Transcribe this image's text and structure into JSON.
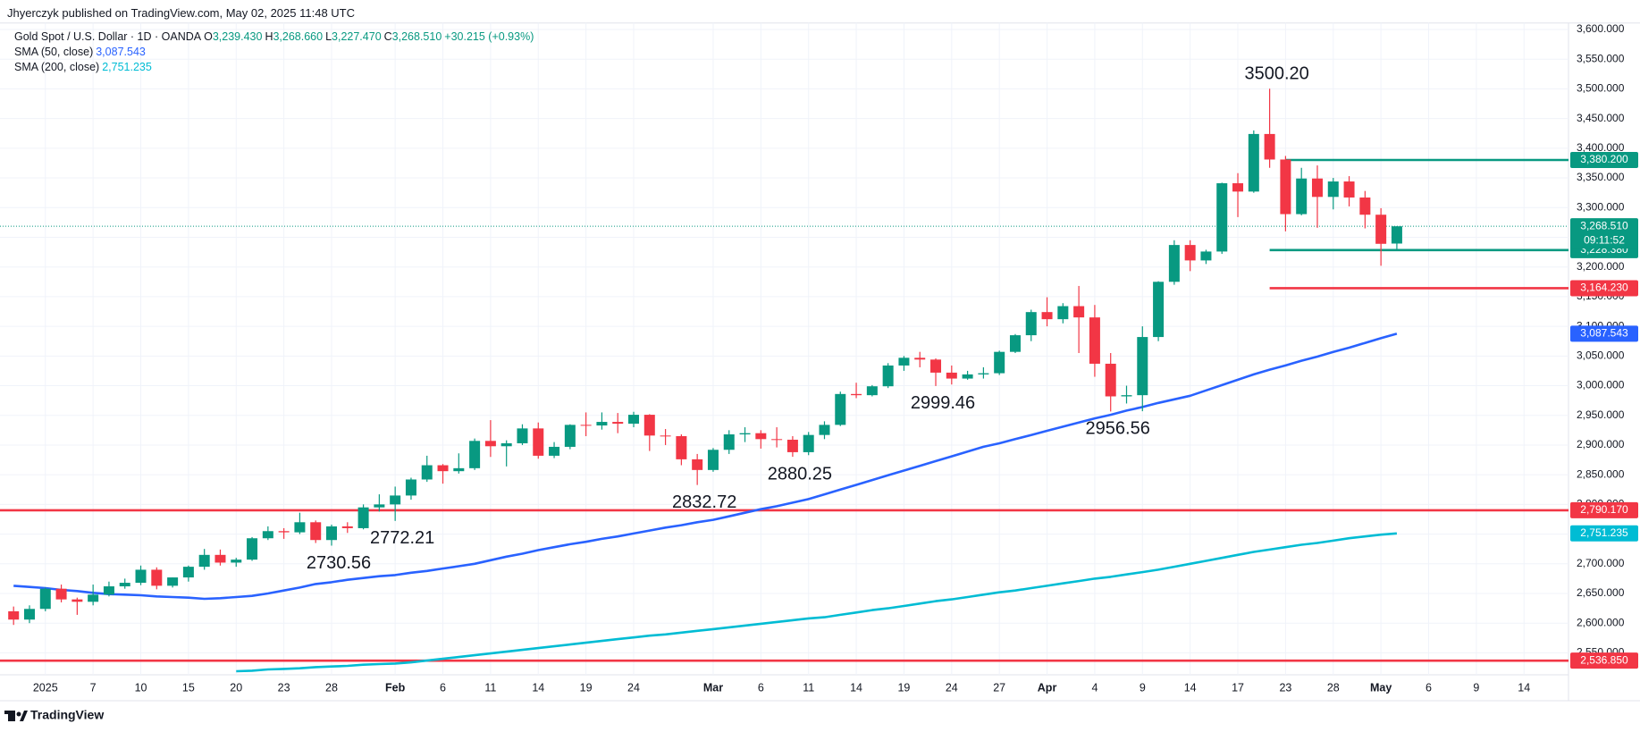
{
  "header": {
    "published": "Jhyerczyk published on TradingView.com, May 02, 2025 11:48 UTC"
  },
  "chart_data": {
    "type": "candlestick",
    "title": "Gold Spot / U.S. Dollar · 1D · OANDA",
    "legend_values": [
      {
        "prefix": "O",
        "label": "3,239.430"
      },
      {
        "prefix": "H",
        "label": "3,268.660"
      },
      {
        "prefix": "L",
        "label": "3,227.470"
      },
      {
        "prefix": "C",
        "label": "3,268.510"
      }
    ],
    "change": "+30.215 (+0.93%)",
    "categories": [
      null,
      null,
      "2025",
      null,
      null,
      "7",
      null,
      null,
      "10",
      null,
      null,
      "15",
      null,
      null,
      "20",
      null,
      null,
      "23",
      null,
      null,
      "28",
      null,
      null,
      null,
      "Feb",
      null,
      null,
      "6",
      null,
      null,
      "11",
      null,
      null,
      "14",
      null,
      null,
      "19",
      null,
      null,
      "24",
      null,
      null,
      null,
      null,
      "Mar",
      null,
      null,
      "6",
      null,
      null,
      "11",
      null,
      null,
      "14",
      null,
      null,
      "19",
      null,
      null,
      "24",
      null,
      null,
      "27",
      null,
      null,
      "Apr",
      null,
      null,
      "4",
      null,
      null,
      "9",
      null,
      null,
      "14",
      null,
      null,
      "17",
      null,
      null,
      "23",
      null,
      null,
      "28",
      null,
      null,
      "May",
      null,
      null,
      "6",
      null,
      null,
      "9",
      null,
      null,
      "14"
    ],
    "open": [
      2620,
      2606,
      2624,
      2658,
      2640,
      2636,
      2648,
      2662,
      2668,
      2690,
      2663,
      2677,
      2695,
      2715,
      2702,
      2707,
      2743,
      2755,
      2753,
      2770,
      2740,
      2763,
      2760,
      2795,
      2800,
      2815,
      2842,
      2866,
      2856,
      2861,
      2907,
      2898,
      2903,
      2928,
      2882,
      2897,
      2934,
      2933,
      2939,
      2936,
      2951,
      2916,
      2915,
      2876,
      2858,
      2892,
      2918,
      2920,
      2910,
      2909,
      2888,
      2917,
      2934,
      2986,
      2984,
      2999,
      3034,
      3047,
      3044,
      3022,
      3012,
      3019,
      3021,
      3057,
      3085,
      3124,
      3112,
      3134,
      3115,
      3037,
      2982,
      2984,
      3082,
      3175,
      3237,
      3211,
      3226,
      3341,
      3327,
      3424,
      3381,
      3289,
      3349,
      3318,
      3344,
      3317,
      3288,
      3239.43,
      null,
      null,
      null,
      null,
      null,
      null,
      null,
      null
    ],
    "high": [
      2628,
      2630,
      2660,
      2665,
      2643,
      2665,
      2670,
      2675,
      2697,
      2694,
      2677,
      2697,
      2725,
      2724,
      2710,
      2745,
      2763,
      2760,
      2786,
      2773,
      2766,
      2770,
      2800,
      2817,
      2830,
      2845,
      2882,
      2868,
      2886,
      2911,
      2942,
      2908,
      2935,
      2938,
      2905,
      2935,
      2955,
      2955,
      2954,
      2956,
      2952,
      2927,
      2918,
      2885,
      2895,
      2925,
      2930,
      2925,
      2930,
      2915,
      2922,
      2940,
      2990,
      3005,
      3001,
      3038,
      3050,
      3057,
      3046,
      3034,
      3025,
      3031,
      3059,
      3087,
      3128,
      3149,
      3139,
      3168,
      3136,
      3055,
      3000,
      3100,
      3176,
      3245,
      3245,
      3229,
      3342,
      3358,
      3430,
      3500.2,
      3387,
      3367,
      3371,
      3350,
      3353,
      3328,
      3299,
      3268.66,
      null,
      null,
      null,
      null,
      null,
      null,
      null,
      null
    ],
    "low": [
      2597,
      2600,
      2620,
      2635,
      2614,
      2630,
      2645,
      2658,
      2664,
      2657,
      2660,
      2670,
      2690,
      2697,
      2695,
      2705,
      2740,
      2742,
      2750,
      2735,
      2730.56,
      2752,
      2758,
      2788,
      2772.21,
      2808,
      2838,
      2835,
      2852,
      2858,
      2880,
      2864,
      2900,
      2877,
      2878,
      2893,
      2915,
      2926,
      2920,
      2930,
      2890,
      2900,
      2866,
      2832.72,
      2855,
      2885,
      2905,
      2894,
      2896,
      2880.25,
      2883,
      2910,
      2932,
      2979,
      2982,
      2996,
      3025,
      3031,
      2999.46,
      3002,
      3010,
      3012,
      3018,
      3055,
      3075,
      3100,
      3105,
      3055,
      3015,
      2956.56,
      2970,
      2957,
      3075,
      3170,
      3193,
      3205,
      3222,
      3284,
      3325,
      3367,
      3260,
      3287,
      3266,
      3297,
      3302,
      3265,
      3202,
      3227.47,
      null,
      null,
      null,
      null,
      null,
      null,
      null,
      null
    ],
    "close": [
      2606,
      2624,
      2658,
      2640,
      2636,
      2648,
      2662,
      2668,
      2690,
      2663,
      2677,
      2695,
      2715,
      2702,
      2707,
      2743,
      2755,
      2753,
      2770,
      2740,
      2763,
      2760,
      2795,
      2800,
      2815,
      2842,
      2866,
      2856,
      2861,
      2907,
      2898,
      2903,
      2928,
      2882,
      2897,
      2934,
      2933,
      2939,
      2936,
      2951,
      2916,
      2915,
      2876,
      2858,
      2892,
      2918,
      2920,
      2910,
      2909,
      2888,
      2917,
      2934,
      2986,
      2984,
      2999,
      3034,
      3047,
      3044,
      3022,
      3012,
      3019,
      3021,
      3057,
      3085,
      3124,
      3112,
      3134,
      3115,
      3037,
      2982,
      2984,
      3082,
      3175,
      3237,
      3211,
      3226,
      3341,
      3327,
      3424,
      3381,
      3289,
      3349,
      3318,
      3344,
      3317,
      3288,
      3239,
      3268.51,
      null,
      null,
      null,
      null,
      null,
      null,
      null,
      null
    ],
    "up_color": "#089981",
    "down_color": "#f23645",
    "series": [
      {
        "name": "SMA (50, close)",
        "color": "#2962ff",
        "last_label": "3,087.543",
        "values": [
          2663,
          2661,
          2659,
          2656,
          2654,
          2651,
          2649,
          2648,
          2647,
          2645,
          2644,
          2643,
          2641,
          2642,
          2644,
          2646,
          2650,
          2655,
          2660,
          2666,
          2669,
          2673,
          2676,
          2679,
          2681,
          2685,
          2688,
          2692,
          2696,
          2700,
          2706,
          2712,
          2717,
          2723,
          2728,
          2733,
          2737,
          2742,
          2746,
          2751,
          2756,
          2761,
          2765,
          2770,
          2774,
          2780,
          2786,
          2792,
          2797,
          2803,
          2809,
          2817,
          2825,
          2833,
          2841,
          2849,
          2857,
          2865,
          2873,
          2881,
          2889,
          2897,
          2903,
          2910,
          2917,
          2924,
          2931,
          2938,
          2945,
          2951,
          2958,
          2964,
          2971,
          2977,
          2983,
          2992,
          3001,
          3010,
          3019,
          3027,
          3034,
          3042,
          3049,
          3057,
          3064,
          3072,
          3080,
          3087.543,
          null,
          null,
          null,
          null,
          null,
          null,
          null,
          null
        ]
      },
      {
        "name": "SMA (200, close)",
        "color": "#00bcd4",
        "last_label": "2,751.235",
        "values": [
          null,
          null,
          null,
          null,
          null,
          null,
          null,
          null,
          null,
          null,
          null,
          null,
          null,
          null,
          2519,
          2520,
          2522,
          2523,
          2524,
          2526,
          2527,
          2528,
          2530,
          2531,
          2532,
          2534,
          2537,
          2540,
          2543,
          2546,
          2549,
          2552,
          2555,
          2558,
          2561,
          2564,
          2567,
          2570,
          2573,
          2576,
          2579,
          2581,
          2584,
          2587,
          2590,
          2593,
          2596,
          2599,
          2602,
          2605,
          2608,
          2610,
          2614,
          2618,
          2622,
          2625,
          2629,
          2633,
          2637,
          2640,
          2644,
          2648,
          2652,
          2655,
          2659,
          2663,
          2667,
          2671,
          2675,
          2678,
          2682,
          2686,
          2690,
          2695,
          2700,
          2705,
          2710,
          2715,
          2720,
          2724,
          2728,
          2732,
          2735,
          2739,
          2743,
          2746,
          2749,
          2751.235,
          null,
          null,
          null,
          null,
          null,
          null,
          null,
          null
        ]
      }
    ],
    "levels": [
      {
        "value": 3380.2,
        "label": "3,380.200",
        "color": "#089981"
      },
      {
        "value": 3228.38,
        "label": "3,228.380",
        "color": "#089981"
      },
      {
        "value": 3164.23,
        "label": "3,164.230",
        "color": "#f23645"
      },
      {
        "value": 2790.17,
        "label": "2,790.170",
        "color": "#f23645"
      },
      {
        "value": 2536.85,
        "label": "2,536.850",
        "color": "#f23645"
      }
    ],
    "last_price": {
      "value": 3268.51,
      "label": "3,268.510",
      "countdown": "09:11:52"
    },
    "annotations": [
      {
        "value": 3500.2,
        "label": "3500.20"
      },
      {
        "value": 2730.56,
        "label": "2730.56"
      },
      {
        "value": 2772.21,
        "label": "2772.21"
      },
      {
        "value": 2832.72,
        "label": "2832.72"
      },
      {
        "value": 2880.25,
        "label": "2880.25"
      },
      {
        "value": 2999.46,
        "label": "2999.46"
      },
      {
        "value": 2956.56,
        "label": "2956.56"
      }
    ],
    "ylim": [
      2513,
      3611
    ],
    "yticks": [
      {
        "value": 2550,
        "label": "2,550.000"
      },
      {
        "value": 2600,
        "label": "2,600.000"
      },
      {
        "value": 2650,
        "label": "2,650.000"
      },
      {
        "value": 2700,
        "label": "2,700.000"
      },
      {
        "value": 2750,
        "label": "2,750.000"
      },
      {
        "value": 2800,
        "label": "2,800.000"
      },
      {
        "value": 2850,
        "label": "2,850.000"
      },
      {
        "value": 2900,
        "label": "2,900.000"
      },
      {
        "value": 2950,
        "label": "2,950.000"
      },
      {
        "value": 3000,
        "label": "3,000.000"
      },
      {
        "value": 3050,
        "label": "3,050.000"
      },
      {
        "value": 3100,
        "label": "3,100.000"
      },
      {
        "value": 3150,
        "label": "3,150.000"
      },
      {
        "value": 3200,
        "label": "3,200.000"
      },
      {
        "value": 3250,
        "label": "3,250.000"
      },
      {
        "value": 3300,
        "label": "3,300.000"
      },
      {
        "value": 3350,
        "label": "3,350.000"
      },
      {
        "value": 3400,
        "label": "3,400.000"
      },
      {
        "value": 3450,
        "label": "3,450.000"
      },
      {
        "value": 3500,
        "label": "3,500.000"
      },
      {
        "value": 3550,
        "label": "3,550.000"
      },
      {
        "value": 3600,
        "label": "3,600.000"
      }
    ],
    "grid": true
  },
  "footer": {
    "brand": "TradingView"
  }
}
